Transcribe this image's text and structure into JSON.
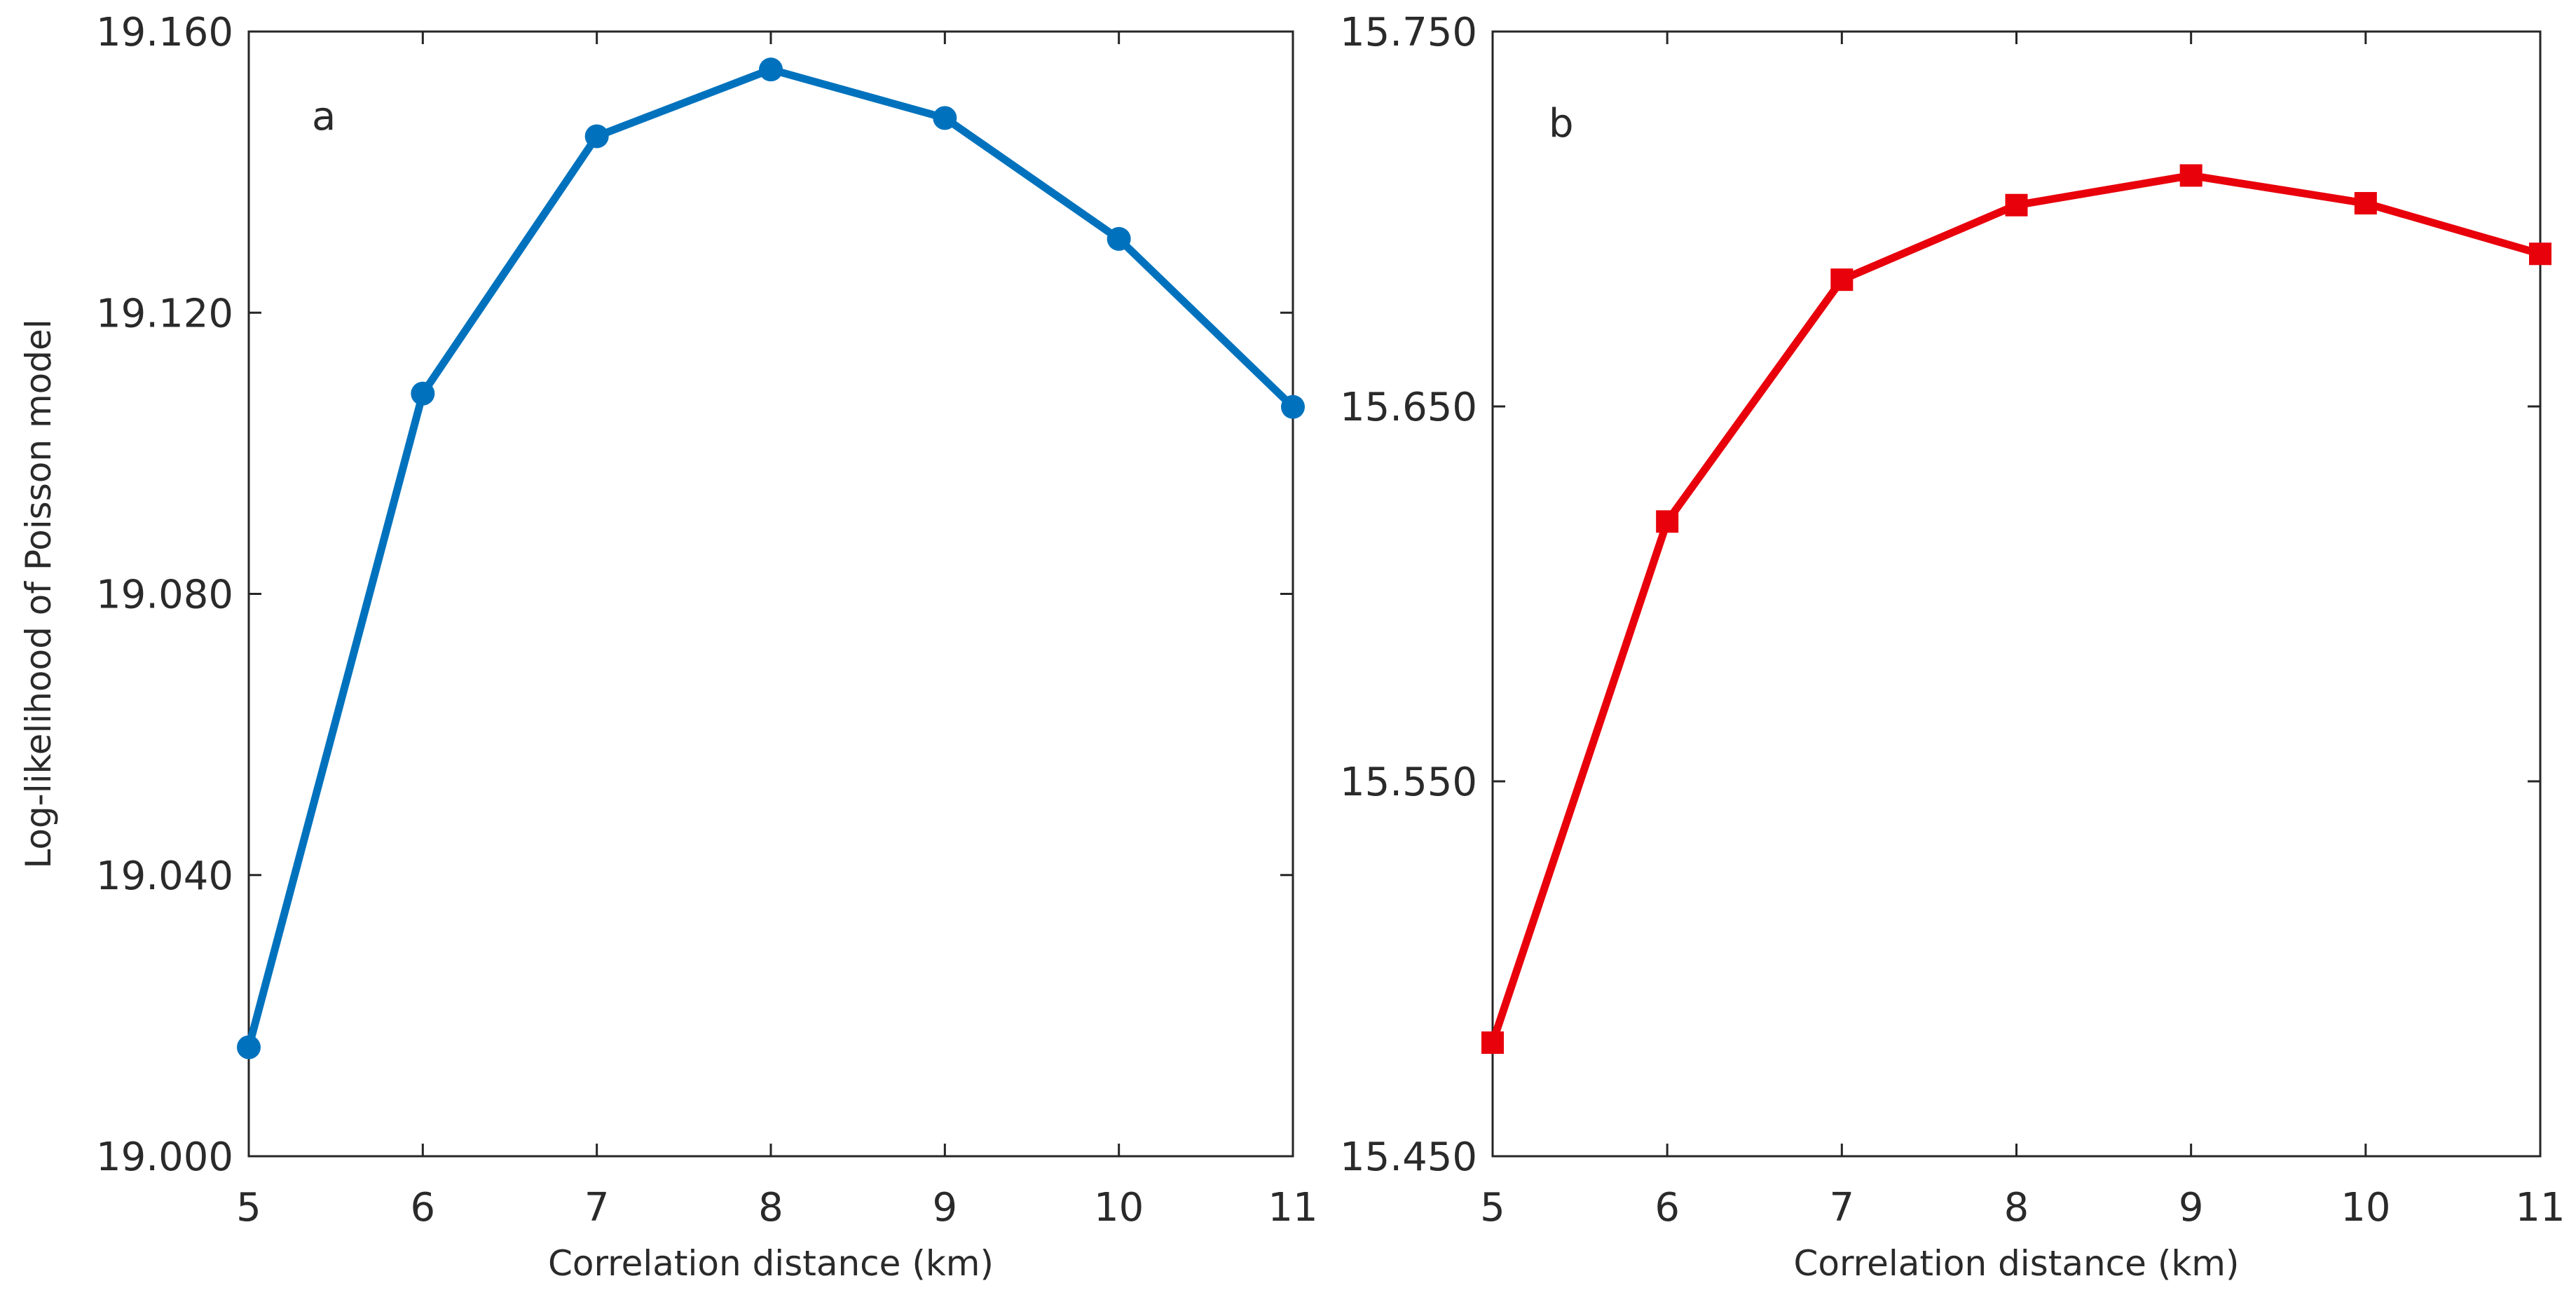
{
  "chart_data": [
    {
      "type": "line",
      "panel_label": "a",
      "xlabel": "Correlation distance (km)",
      "ylabel": "Log-likelihood of Poisson model",
      "xlim": [
        5,
        11
      ],
      "ylim": [
        19.0,
        19.16
      ],
      "x_ticks": [
        "5",
        "6",
        "7",
        "8",
        "9",
        "10",
        "11"
      ],
      "y_ticks": [
        "19.000",
        "19.040",
        "19.080",
        "19.120",
        "19.160"
      ],
      "marker": "circle",
      "color": "#0072BD",
      "grid": false,
      "series": [
        {
          "x": [
            5,
            6,
            7,
            8,
            9,
            10,
            11
          ],
          "values": [
            19.0155,
            19.1085,
            19.1451,
            19.1546,
            19.1477,
            19.1305,
            19.1066
          ]
        }
      ]
    },
    {
      "type": "line",
      "panel_label": "b",
      "xlabel": "Correlation distance (km)",
      "ylabel": "",
      "xlim": [
        5,
        11
      ],
      "ylim": [
        15.45,
        15.75
      ],
      "x_ticks": [
        "5",
        "6",
        "7",
        "8",
        "9",
        "10",
        "11"
      ],
      "y_ticks": [
        "15.450",
        "15.550",
        "15.650",
        "15.750"
      ],
      "marker": "square",
      "color": "#E8000B",
      "grid": false,
      "series": [
        {
          "x": [
            5,
            6,
            7,
            8,
            9,
            10,
            11
          ],
          "values": [
            15.4803,
            15.6193,
            15.6838,
            15.7037,
            15.7116,
            15.7042,
            15.6907
          ]
        }
      ]
    }
  ]
}
